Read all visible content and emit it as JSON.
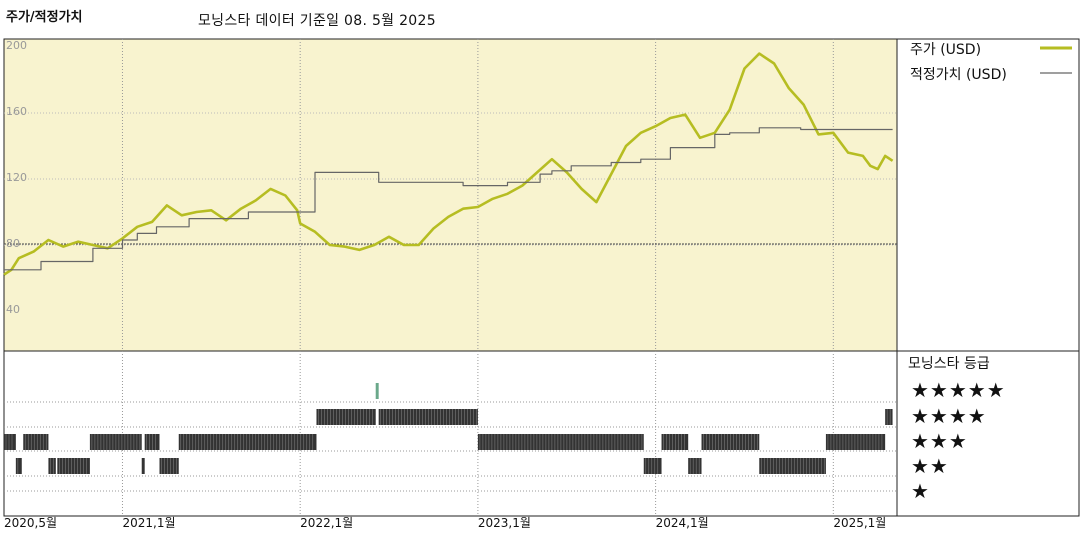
{
  "header": {
    "section_title": "주가/적정가치",
    "subtitle": "모닝스타 데이터 기준일 08. 5월 2025"
  },
  "legend": {
    "price": "주가 (USD)",
    "fair_value": "적정가치 (USD)"
  },
  "rating_panel": {
    "title": "모닝스타 등급",
    "stars": [
      "★★★★★",
      "★★★★",
      "★★★",
      "★★",
      "★"
    ]
  },
  "colors": {
    "price": "#b6bd22",
    "fair_value": "#666666",
    "band": "#f8f3cf",
    "rating_bars": "#333333",
    "rating5_marker": "#6aa88a"
  },
  "chart_data": {
    "type": "line",
    "title": "",
    "ylabel": "",
    "xlabel": "",
    "y_ticks": [
      200,
      160,
      120,
      80,
      40
    ],
    "ylim": [
      40,
      210
    ],
    "x_ticks": [
      "2020,5월",
      "2021,1월",
      "2022,1월",
      "2023,1월",
      "2024,1월",
      "2025,1월"
    ],
    "x_tick_months": [
      0,
      8,
      20,
      32,
      44,
      56
    ],
    "xlim_months": [
      0,
      60.3
    ],
    "grid": true,
    "legend_position": "right",
    "series": [
      {
        "name": "주가 (USD)",
        "x_months": [
          0,
          0.5,
          1,
          2,
          3,
          4,
          5,
          6,
          7,
          8,
          9,
          10,
          11,
          12,
          13,
          14,
          15,
          16,
          17,
          18,
          19,
          19.8,
          20,
          21,
          22,
          23,
          24,
          25,
          26,
          27,
          28,
          29,
          30,
          31,
          32,
          33,
          34,
          35,
          36,
          37,
          38,
          39,
          40,
          41,
          42,
          43,
          44,
          45,
          46,
          47,
          48,
          49,
          50,
          51,
          52,
          53,
          54,
          55,
          56,
          57,
          58,
          58.5,
          59,
          59.5,
          60
        ],
        "values": [
          62,
          65,
          72,
          76,
          83,
          79,
          82,
          80,
          78,
          84,
          91,
          94,
          104,
          98,
          100,
          101,
          95,
          102,
          107,
          114,
          110,
          101,
          93,
          88,
          80,
          79,
          77,
          80,
          85,
          80,
          80,
          90,
          97,
          102,
          103,
          108,
          111,
          116,
          124,
          132,
          124,
          114,
          106,
          123,
          140,
          148,
          152,
          157,
          159,
          145,
          148,
          162,
          187,
          196,
          190,
          175,
          165,
          147,
          148,
          136,
          134,
          128,
          126,
          134,
          131
        ]
      },
      {
        "name": "적정가치 (USD)",
        "x_months": [
          0,
          2.5,
          2.5,
          6,
          6,
          8,
          8,
          9,
          9,
          10.3,
          10.3,
          12.5,
          12.5,
          16.5,
          16.5,
          21,
          21,
          25.3,
          25.3,
          31,
          31,
          34,
          34,
          36.2,
          36.2,
          37,
          37,
          38.3,
          38.3,
          41,
          41,
          43,
          43,
          45,
          45,
          48,
          48,
          49,
          49,
          51,
          51,
          53.8,
          53.8,
          60
        ],
        "values": [
          65,
          65,
          70,
          70,
          78,
          78,
          83,
          83,
          87,
          87,
          91,
          91,
          96,
          96,
          100,
          100,
          124,
          124,
          118,
          118,
          116,
          116,
          118,
          118,
          123,
          123,
          125,
          125,
          128,
          128,
          130,
          130,
          132,
          132,
          139,
          139,
          147,
          147,
          148,
          148,
          151,
          151,
          150,
          150
        ]
      }
    ],
    "star_rating": {
      "label": "모닝스타 등급",
      "periods": [
        {
          "start": 0,
          "end": 0.8,
          "stars": 3
        },
        {
          "start": 0.8,
          "end": 1.2,
          "stars": 2
        },
        {
          "start": 1.3,
          "end": 3,
          "stars": 3
        },
        {
          "start": 3,
          "end": 3.5,
          "stars": 2
        },
        {
          "start": 3.6,
          "end": 5.8,
          "stars": 2
        },
        {
          "start": 5.8,
          "end": 9.3,
          "stars": 3
        },
        {
          "start": 9.3,
          "end": 9.5,
          "stars": 2
        },
        {
          "start": 9.5,
          "end": 10.5,
          "stars": 3
        },
        {
          "start": 10.5,
          "end": 11.8,
          "stars": 2
        },
        {
          "start": 11.8,
          "end": 21.1,
          "stars": 3
        },
        {
          "start": 21.1,
          "end": 25.1,
          "stars": 4
        },
        {
          "start": 25.1,
          "end": 25.3,
          "stars": 5
        },
        {
          "start": 25.3,
          "end": 32,
          "stars": 4
        },
        {
          "start": 32,
          "end": 43.2,
          "stars": 3
        },
        {
          "start": 43.2,
          "end": 44.4,
          "stars": 2
        },
        {
          "start": 44.4,
          "end": 46.2,
          "stars": 3
        },
        {
          "start": 46.2,
          "end": 47.1,
          "stars": 2
        },
        {
          "start": 47.1,
          "end": 51,
          "stars": 3
        },
        {
          "start": 51,
          "end": 55.5,
          "stars": 2
        },
        {
          "start": 55.5,
          "end": 59.5,
          "stars": 3
        },
        {
          "start": 59.5,
          "end": 60,
          "stars": 4
        }
      ]
    }
  }
}
